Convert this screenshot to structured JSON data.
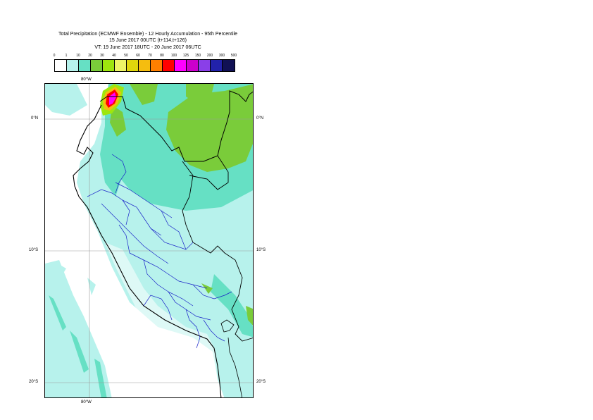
{
  "title": {
    "line1": "Total Precipitation (ECMWF Ensemble) - 12 Hourly Accumulation - 95th Percentile",
    "line2": "15 June 2017 00UTC (t+114,t+126)",
    "line3": "VT: 19 June 2017 18UTC - 20 June 2017 06UTC"
  },
  "legend": {
    "levels": [
      "0",
      "1",
      "10",
      "20",
      "30",
      "40",
      "50",
      "60",
      "70",
      "80",
      "100",
      "125",
      "150",
      "200",
      "300",
      "500"
    ],
    "colors": [
      "#ffffff",
      "#b7f2ec",
      "#66e0c4",
      "#7acc3a",
      "#9ee60e",
      "#eef566",
      "#e0d70c",
      "#f5bd0f",
      "#ff7f00",
      "#ff0000",
      "#ff00ff",
      "#cc00cc",
      "#8a3fe8",
      "#2222aa",
      "#111155"
    ]
  },
  "axes": {
    "lon_top": "80°W",
    "lon_bottom": "80°W",
    "lat_0_left": "0°N",
    "lat_0_right": "0°N",
    "lat_10_left": "10°S",
    "lat_10_right": "10°S",
    "lat_20_left": "20°S",
    "lat_20_right": "20°S"
  }
}
